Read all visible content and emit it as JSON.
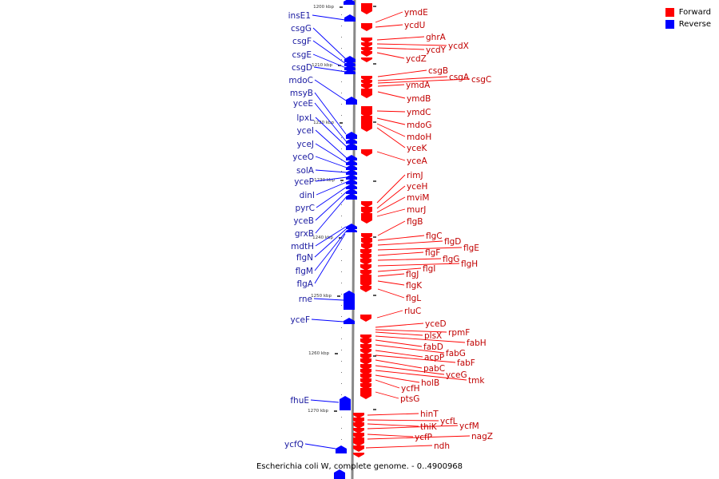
{
  "title": "Escherichia coli W, complete genome. - 0..4900968",
  "legend": [
    {
      "label": "Forward",
      "color": "#ff0000"
    },
    {
      "label": "Reverse",
      "color": "#0000ff"
    }
  ],
  "colors": {
    "forward": "#ff0000",
    "reverse": "#0000ff",
    "axis": "#888888"
  },
  "ticks": [
    "1200 kbp",
    "1210 kbp",
    "1220 kbp",
    "1230 kbp",
    "1240 kbp",
    "1250 kbp",
    "1260 kbp",
    "1270 kbp"
  ],
  "reverse_genes": [
    "insE1",
    "csgG",
    "csgF",
    "csgE",
    "csgD",
    "mdoC",
    "msyB",
    "yceE",
    "lpxL",
    "yceI",
    "yceJ",
    "yceO",
    "solA",
    "yceP",
    "dinI",
    "pyrC",
    "yceB",
    "grxB",
    "mdtH",
    "flgN",
    "flgM",
    "flgA",
    "rne",
    "yceF",
    "fhuE",
    "ycfQ"
  ],
  "forward_genes": [
    "ymdE",
    "ycdU",
    "ghrA",
    "ycdX",
    "ycdY",
    "ycdZ",
    "csgB",
    "csgA",
    "csgC",
    "ymdA",
    "ymdB",
    "ymdC",
    "mdoG",
    "mdoH",
    "yceK",
    "yceA",
    "rimJ",
    "yceH",
    "mviM",
    "murJ",
    "flgB",
    "flgC",
    "flgD",
    "flgE",
    "flgF",
    "flgG",
    "flgH",
    "flgI",
    "flgJ",
    "flgK",
    "flgL",
    "rluC",
    "yceD",
    "rpmF",
    "plsX",
    "fabH",
    "fabD",
    "fabG",
    "acpP",
    "fabF",
    "pabC",
    "yceG",
    "tmk",
    "holB",
    "ycfH",
    "ptsG",
    "hinT",
    "ycfL",
    "thiK",
    "ycfM",
    "ycfP",
    "nagZ",
    "ndh"
  ]
}
